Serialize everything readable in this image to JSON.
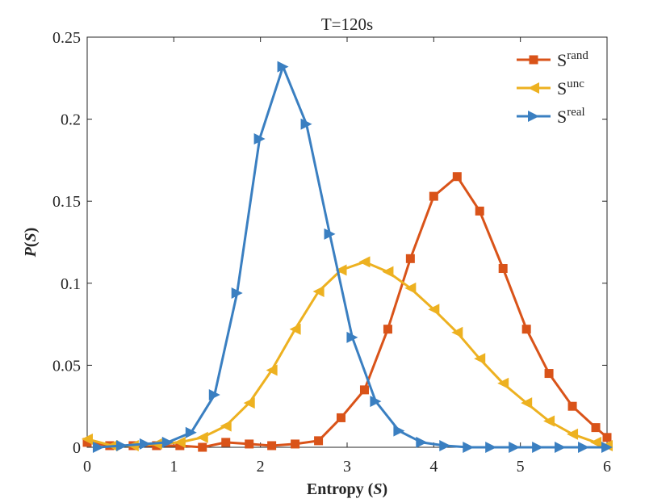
{
  "chart_data": {
    "type": "line",
    "title": "T=120s",
    "xlabel": {
      "prefix": "Entropy (",
      "var": "S",
      "suffix": ")"
    },
    "ylabel": {
      "var": "P",
      "open": "(",
      "arg": "S",
      "close": ")"
    },
    "xlim": [
      0,
      6
    ],
    "ylim": [
      0,
      0.25
    ],
    "xticks": [
      0,
      1,
      2,
      3,
      4,
      5,
      6
    ],
    "xtick_labels": [
      "0",
      "1",
      "2",
      "3",
      "4",
      "5",
      "6"
    ],
    "yticks": [
      0,
      0.05,
      0.1,
      0.15,
      0.2,
      0.25
    ],
    "ytick_labels": [
      "0",
      "0.05",
      "0.1",
      "0.15",
      "0.2",
      "0.25"
    ],
    "grid": false,
    "legend_position": "top-right",
    "series": [
      {
        "name": "rand",
        "label_base": "S",
        "label_sup": "rand",
        "color": "#D95319",
        "marker": "square",
        "x": [
          0.0,
          0.26,
          0.53,
          0.8,
          1.07,
          1.33,
          1.6,
          1.87,
          2.13,
          2.4,
          2.67,
          2.93,
          3.2,
          3.47,
          3.73,
          4.0,
          4.27,
          4.53,
          4.8,
          5.07,
          5.33,
          5.6,
          5.87,
          6.0
        ],
        "y": [
          0.003,
          0.001,
          0.001,
          0.001,
          0.001,
          0.0,
          0.003,
          0.002,
          0.001,
          0.002,
          0.004,
          0.018,
          0.035,
          0.072,
          0.115,
          0.153,
          0.165,
          0.144,
          0.109,
          0.072,
          0.045,
          0.025,
          0.012,
          0.006
        ]
      },
      {
        "name": "unc",
        "label_base": "S",
        "label_sup": "unc",
        "color": "#EDB120",
        "marker": "triangle-left",
        "x": [
          0.0,
          0.29,
          0.53,
          0.8,
          1.07,
          1.33,
          1.6,
          1.87,
          2.13,
          2.4,
          2.67,
          2.93,
          3.2,
          3.47,
          3.73,
          4.0,
          4.27,
          4.53,
          4.8,
          5.07,
          5.33,
          5.6,
          5.87,
          6.0
        ],
        "y": [
          0.005,
          0.001,
          0.001,
          0.002,
          0.003,
          0.006,
          0.013,
          0.027,
          0.047,
          0.072,
          0.095,
          0.108,
          0.113,
          0.107,
          0.097,
          0.084,
          0.07,
          0.054,
          0.039,
          0.027,
          0.016,
          0.008,
          0.003,
          0.001
        ]
      },
      {
        "name": "real",
        "label_base": "S",
        "label_sup": "real",
        "color": "#3A7FC1",
        "marker": "triangle-right",
        "x": [
          0.13,
          0.4,
          0.67,
          0.93,
          1.2,
          1.47,
          1.73,
          1.99,
          2.26,
          2.53,
          2.8,
          3.06,
          3.33,
          3.6,
          3.86,
          4.13,
          4.4,
          4.66,
          4.93,
          5.2,
          5.46,
          5.73,
          6.0
        ],
        "y": [
          0.0,
          0.001,
          0.002,
          0.003,
          0.009,
          0.032,
          0.094,
          0.188,
          0.232,
          0.197,
          0.13,
          0.067,
          0.028,
          0.01,
          0.003,
          0.001,
          0.0,
          0.0,
          0.0,
          0.0,
          0.0,
          0.0,
          0.0
        ]
      }
    ]
  }
}
